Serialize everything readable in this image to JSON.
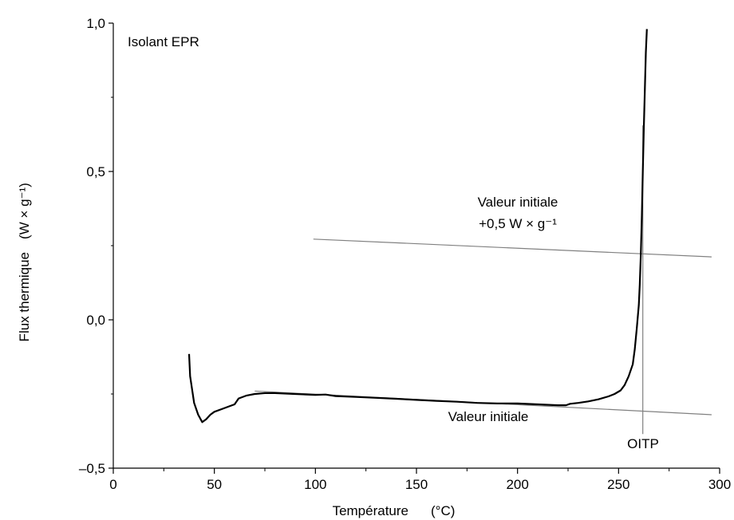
{
  "chart_data": {
    "type": "line",
    "title": "",
    "xlabel": "Température",
    "xlabel_unit": "(°C)",
    "ylabel": "Flux thermique",
    "ylabel_unit": "(W × g⁻¹)",
    "xlim": [
      0,
      300
    ],
    "ylim": [
      -0.5,
      1.0
    ],
    "xticks": [
      0,
      50,
      100,
      150,
      200,
      250,
      300
    ],
    "xtick_labels": [
      "0",
      "50",
      "100",
      "150",
      "200",
      "250",
      "300"
    ],
    "yticks": [
      -0.5,
      0.0,
      0.5,
      1.0
    ],
    "ytick_labels": [
      "–0,5",
      "0,0",
      "0,5",
      "1,0"
    ],
    "grid": false,
    "legend": "none",
    "series": [
      {
        "color": "#000000",
        "x": [
          37.5,
          38,
          40,
          42,
          44,
          46,
          48,
          50,
          54,
          58,
          60,
          62,
          66,
          70,
          75,
          80,
          90,
          100,
          105,
          110,
          120,
          130,
          140,
          150,
          160,
          170,
          180,
          190,
          200,
          210,
          220,
          224,
          226,
          230,
          235,
          240,
          245,
          248,
          251,
          253,
          255,
          257,
          258,
          259,
          260,
          260.5,
          261,
          261.5,
          262,
          262.5,
          263,
          263.5,
          264
        ],
        "y": [
          -0.115,
          -0.19,
          -0.28,
          -0.32,
          -0.345,
          -0.335,
          -0.32,
          -0.31,
          -0.3,
          -0.29,
          -0.285,
          -0.265,
          -0.255,
          -0.25,
          -0.247,
          -0.247,
          -0.25,
          -0.253,
          -0.252,
          -0.257,
          -0.26,
          -0.263,
          -0.266,
          -0.27,
          -0.273,
          -0.276,
          -0.28,
          -0.282,
          -0.282,
          -0.285,
          -0.288,
          -0.288,
          -0.283,
          -0.28,
          -0.275,
          -0.268,
          -0.258,
          -0.25,
          -0.238,
          -0.22,
          -0.19,
          -0.15,
          -0.1,
          -0.03,
          0.05,
          0.12,
          0.22,
          0.35,
          0.5,
          0.65,
          0.78,
          0.9,
          0.98
        ]
      },
      {
        "color": "#808080",
        "x": [
          70,
          296
        ],
        "y": [
          -0.24,
          -0.32
        ]
      },
      {
        "color": "#808080",
        "x": [
          99,
          296
        ],
        "y": [
          0.272,
          0.212
        ]
      },
      {
        "color": "#808080",
        "x": [
          262,
          262
        ],
        "y": [
          -0.385,
          0.655
        ]
      }
    ],
    "annotations": [
      {
        "id": "title_label",
        "text": "Isolant EPR",
        "x": 8,
        "y": 0.92
      },
      {
        "id": "baseline_label",
        "text": "Valeur initiale",
        "x": 210,
        "y": -0.38
      },
      {
        "id": "offset_label_line1",
        "text": "Valeur initiale",
        "x": 230,
        "y": 0.385
      },
      {
        "id": "offset_label_line2",
        "text": "+0,5 W × g⁻¹",
        "x": 230,
        "y": 0.315
      },
      {
        "id": "oitp_label",
        "text": "OITP",
        "x": 262,
        "y": -0.435
      }
    ]
  }
}
